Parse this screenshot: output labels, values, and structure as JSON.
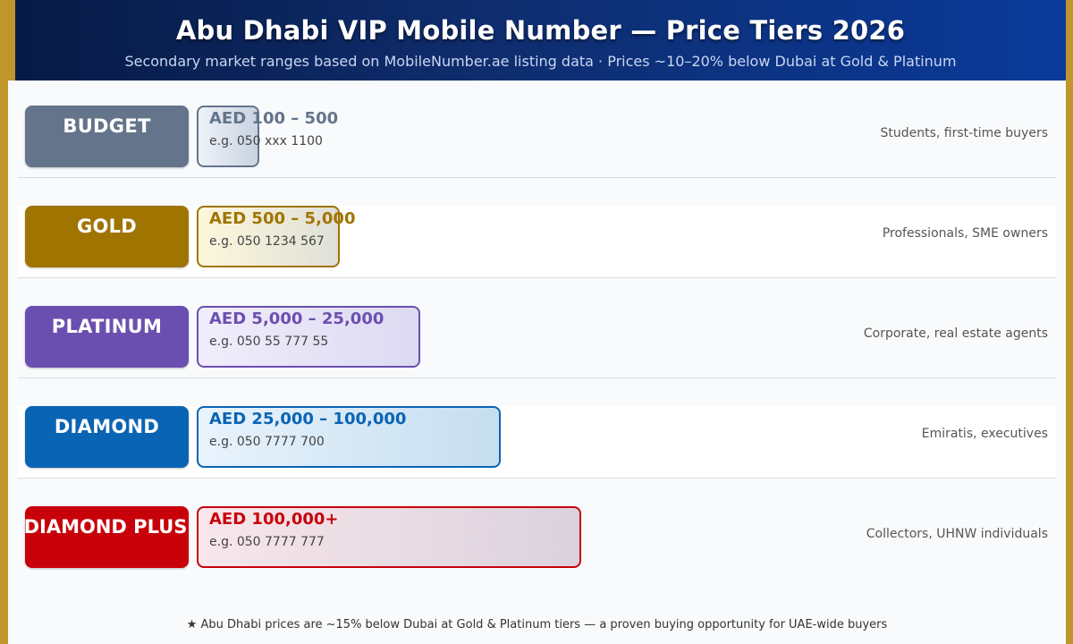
{
  "header": {
    "title": "Abu Dhabi VIP Mobile Number — Price Tiers 2026",
    "subtitle": "Secondary market ranges based on MobileNumber.ae listing data  ·  Prices ~10–20% below Dubai at Gold & Platinum"
  },
  "chart_data": {
    "type": "bar",
    "orientation": "horizontal",
    "categories": [
      "BUDGET",
      "GOLD",
      "PLATINUM",
      "DIAMOND",
      "DIAMOND PLUS"
    ],
    "series": [
      {
        "values": [
          1,
          2,
          3,
          4,
          5
        ]
      }
    ],
    "tiers": [
      {
        "name": "BUDGET",
        "price": "AED 100 – 500",
        "example": "e.g. 050 xxx 1100",
        "audience": "Students, first-time buyers",
        "rank": 1,
        "color": "#64748b",
        "text_color": "#64748b",
        "fill_start": "#eef2f8",
        "fill_end": "#c9d3e2"
      },
      {
        "name": "GOLD",
        "price": "AED 500 – 5,000",
        "example": "e.g. 050 1234 567",
        "audience": "Professionals, SME owners",
        "rank": 2,
        "color": "#a07400",
        "text_color": "#a07400",
        "fill_start": "#fdf7db",
        "fill_end": "#dfe0d8"
      },
      {
        "name": "PLATINUM",
        "price": "AED 5,000 – 25,000",
        "example": "e.g. 050 55 777 55",
        "audience": "Corporate, real estate agents",
        "rank": 3,
        "color": "#6b4fb0",
        "text_color": "#6b4fb0",
        "fill_start": "#f1edfb",
        "fill_end": "#dcdaf2"
      },
      {
        "name": "DIAMOND",
        "price": "AED 25,000 – 100,000",
        "example": "e.g. 050 7777 700",
        "audience": "Emiratis, executives",
        "rank": 4,
        "color": "#0a64b4",
        "text_color": "#0a64b4",
        "fill_start": "#e8f3fc",
        "fill_end": "#c6def0"
      },
      {
        "name": "DIAMOND PLUS",
        "price": "AED 100,000+",
        "example": "e.g. 050 7777 777",
        "audience": "Collectors, UHNW individuals",
        "rank": 5,
        "color": "#c8000a",
        "text_color": "#c8000a",
        "fill_start": "#f8e6ea",
        "fill_end": "#dbd2de"
      }
    ],
    "footnote": "★  Abu Dhabi prices are ~15% below Dubai at Gold & Platinum tiers — a proven buying opportunity for UAE-wide buyers"
  }
}
